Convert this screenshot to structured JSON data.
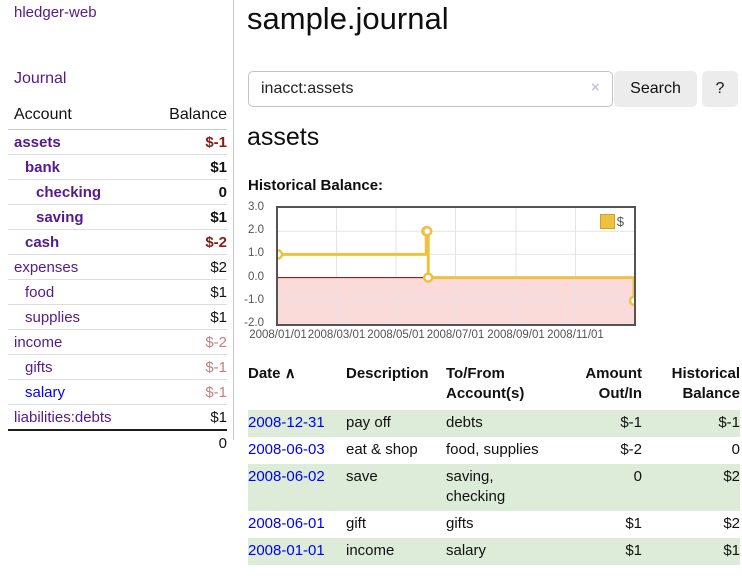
{
  "colors": {
    "link_purple": "#551a8b",
    "link_blue": "#0000ee",
    "negative_dark": "#8c1a11",
    "negative_muted": "#c57f7f",
    "row_green": "#dcecd8",
    "button_gray": "#ececec"
  },
  "sidebar": {
    "brand": "hledger-web",
    "nav_journal": "Journal",
    "accounts_header": {
      "account": "Account",
      "balance": "Balance"
    },
    "accounts": [
      {
        "label": "assets",
        "indent": 0,
        "bold": true,
        "balance": "$-1",
        "balance_style": "neg"
      },
      {
        "label": "bank",
        "indent": 1,
        "bold": true,
        "balance": "$1",
        "balance_style": ""
      },
      {
        "label": "checking",
        "indent": 2,
        "bold": true,
        "balance": "0",
        "balance_style": ""
      },
      {
        "label": "saving",
        "indent": 2,
        "bold": true,
        "balance": "$1",
        "balance_style": ""
      },
      {
        "label": "cash",
        "indent": 1,
        "bold": true,
        "balance": "$-2",
        "balance_style": "neg"
      },
      {
        "label": "expenses",
        "indent": 0,
        "bold": false,
        "balance": "$2",
        "balance_style": ""
      },
      {
        "label": "food",
        "indent": 1,
        "bold": false,
        "balance": "$1",
        "balance_style": ""
      },
      {
        "label": "supplies",
        "indent": 1,
        "bold": false,
        "balance": "$1",
        "balance_style": ""
      },
      {
        "label": "income",
        "indent": 0,
        "bold": false,
        "balance": "$-2",
        "balance_style": "neg-muted"
      },
      {
        "label": "gifts",
        "indent": 1,
        "bold": false,
        "balance": "$-1",
        "balance_style": "neg-muted"
      },
      {
        "label": "salary",
        "indent": 1,
        "bold": false,
        "balance": "$-1",
        "balance_style": "neg-muted",
        "link_color": "blue"
      },
      {
        "label": "liabilities:debts",
        "indent": 0,
        "bold": false,
        "balance": "$1",
        "balance_style": ""
      }
    ],
    "total": "0"
  },
  "main": {
    "title": "sample.journal",
    "search": {
      "value": "inacct:assets",
      "clear_icon": "×",
      "search_button": "Search",
      "help_button": "?"
    },
    "account_heading": "assets",
    "chart_heading": "Historical Balance:"
  },
  "chart_data": {
    "type": "line",
    "title": "Historical Balance",
    "steps": true,
    "xlim": [
      0,
      365
    ],
    "ylim": [
      -2,
      3
    ],
    "series": [
      {
        "name": "$",
        "color": "#edc240",
        "point_dates": [
          "2008-01-01",
          "2008-06-01",
          "2008-06-02",
          "2008-06-03",
          "2008-12-31"
        ],
        "points": [
          [
            0,
            1
          ],
          [
            152,
            2
          ],
          [
            153,
            2
          ],
          [
            154,
            0
          ],
          [
            365,
            -1
          ]
        ]
      }
    ],
    "x_ticks": [
      {
        "x": 0,
        "label": "2008/01/01"
      },
      {
        "x": 60,
        "label": "2008/03/01"
      },
      {
        "x": 121,
        "label": "2008/05/01"
      },
      {
        "x": 182,
        "label": "2008/07/01"
      },
      {
        "x": 244,
        "label": "2008/09/01"
      },
      {
        "x": 305,
        "label": "2008/11/01"
      }
    ],
    "y_ticks": [
      {
        "v": 3,
        "label": "3.0"
      },
      {
        "v": 2,
        "label": "2.0"
      },
      {
        "v": 1,
        "label": "1.0"
      },
      {
        "v": 0,
        "label": "0.0"
      },
      {
        "v": -1,
        "label": "-1.0"
      },
      {
        "v": -2,
        "label": "-2.0"
      }
    ],
    "y_gridlines": [
      2,
      1,
      -1
    ],
    "legend": {
      "label": "$",
      "position": "top-right"
    },
    "colors": {
      "grid": "#e4e4e4",
      "zero_line": "#8b0000",
      "below_zero_fill": "#fbdada",
      "frame": "#545454"
    }
  },
  "register": {
    "headers": [
      "Date",
      "Description",
      "To/From Account(s)",
      "Amount Out/In",
      "Historical Balance"
    ],
    "sort_indicator": "∧",
    "rows": [
      {
        "date": "2008-12-31",
        "description": "pay off",
        "accounts": "debts",
        "amount": "$-1",
        "amount_style": "neg",
        "balance": "$-1",
        "balance_style": "neg"
      },
      {
        "date": "2008-06-03",
        "description": "eat & shop",
        "accounts": "food, supplies",
        "amount": "$-2",
        "amount_style": "neg",
        "balance": "0",
        "balance_style": ""
      },
      {
        "date": "2008-06-02",
        "description": "save",
        "accounts": "saving,\nchecking",
        "amount": "0",
        "amount_style": "",
        "balance": "$2",
        "balance_style": ""
      },
      {
        "date": "2008-06-01",
        "description": "gift",
        "accounts": "gifts",
        "amount": "$1",
        "amount_style": "",
        "balance": "$2",
        "balance_style": ""
      },
      {
        "date": "2008-01-01",
        "description": "income",
        "accounts": "salary",
        "amount": "$1",
        "amount_style": "",
        "balance": "$1",
        "balance_style": ""
      }
    ]
  }
}
